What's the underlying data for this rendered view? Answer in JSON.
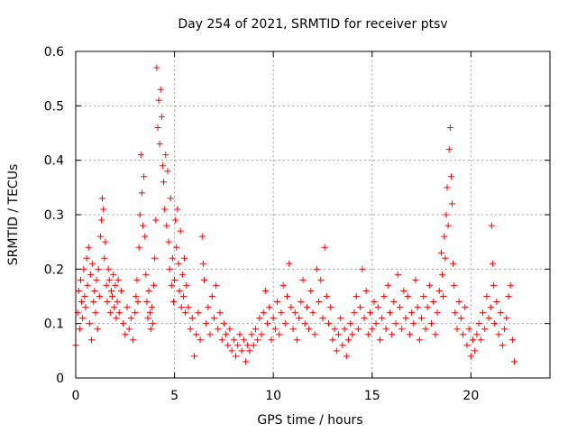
{
  "chart_data": {
    "type": "scatter",
    "title": "Day 254 of 2021, SRMTID for receiver ptsv",
    "xlabel": "GPS time / hours",
    "ylabel": "SRMTID / TECUs",
    "xlim": [
      0,
      24
    ],
    "ylim": [
      0,
      0.6
    ],
    "xticks": [
      0,
      5,
      10,
      15,
      20
    ],
    "xtick_labels": [
      "0",
      "5",
      "10",
      "15",
      "20"
    ],
    "yticks": [
      0,
      0.1,
      0.2,
      0.3,
      0.4,
      0.5,
      0.6
    ],
    "ytick_labels": [
      "0",
      "0.1",
      "0.2",
      "0.3",
      "0.4",
      "0.5",
      "0.6"
    ],
    "grid": true,
    "legend": "none",
    "marker": "plus",
    "color": "#ff0000",
    "series": [
      {
        "name": "SRMTID",
        "points": [
          [
            0.0,
            0.06
          ],
          [
            0.1,
            0.12
          ],
          [
            0.15,
            0.16
          ],
          [
            0.2,
            0.09
          ],
          [
            0.25,
            0.18
          ],
          [
            0.3,
            0.14
          ],
          [
            0.35,
            0.11
          ],
          [
            0.4,
            0.2
          ],
          [
            0.45,
            0.15
          ],
          [
            0.5,
            0.13
          ],
          [
            0.55,
            0.22
          ],
          [
            0.6,
            0.17
          ],
          [
            0.65,
            0.24
          ],
          [
            0.7,
            0.1
          ],
          [
            0.75,
            0.19
          ],
          [
            0.8,
            0.07
          ],
          [
            0.85,
            0.21
          ],
          [
            0.9,
            0.14
          ],
          [
            0.95,
            0.16
          ],
          [
            1.0,
            0.12
          ],
          [
            1.05,
            0.18
          ],
          [
            1.1,
            0.09
          ],
          [
            1.15,
            0.2
          ],
          [
            1.2,
            0.15
          ],
          [
            1.25,
            0.26
          ],
          [
            1.3,
            0.29
          ],
          [
            1.35,
            0.33
          ],
          [
            1.4,
            0.31
          ],
          [
            1.45,
            0.22
          ],
          [
            1.5,
            0.25
          ],
          [
            1.55,
            0.17
          ],
          [
            1.6,
            0.14
          ],
          [
            1.65,
            0.2
          ],
          [
            1.7,
            0.18
          ],
          [
            1.75,
            0.12
          ],
          [
            1.8,
            0.16
          ],
          [
            1.85,
            0.15
          ],
          [
            1.9,
            0.19
          ],
          [
            1.95,
            0.13
          ],
          [
            2.0,
            0.17
          ],
          [
            2.05,
            0.11
          ],
          [
            2.1,
            0.14
          ],
          [
            2.15,
            0.18
          ],
          [
            2.2,
            0.12
          ],
          [
            2.3,
            0.16
          ],
          [
            2.4,
            0.1
          ],
          [
            2.5,
            0.08
          ],
          [
            2.6,
            0.13
          ],
          [
            2.7,
            0.09
          ],
          [
            2.8,
            0.11
          ],
          [
            2.9,
            0.07
          ],
          [
            3.0,
            0.12
          ],
          [
            3.05,
            0.15
          ],
          [
            3.1,
            0.18
          ],
          [
            3.15,
            0.14
          ],
          [
            3.2,
            0.24
          ],
          [
            3.25,
            0.3
          ],
          [
            3.3,
            0.41
          ],
          [
            3.35,
            0.34
          ],
          [
            3.4,
            0.28
          ],
          [
            3.45,
            0.37
          ],
          [
            3.5,
            0.26
          ],
          [
            3.55,
            0.19
          ],
          [
            3.6,
            0.14
          ],
          [
            3.65,
            0.11
          ],
          [
            3.7,
            0.16
          ],
          [
            3.75,
            0.12
          ],
          [
            3.8,
            0.09
          ],
          [
            3.85,
            0.13
          ],
          [
            3.9,
            0.1
          ],
          [
            3.95,
            0.17
          ],
          [
            4.0,
            0.22
          ],
          [
            4.05,
            0.29
          ],
          [
            4.1,
            0.57
          ],
          [
            4.15,
            0.46
          ],
          [
            4.2,
            0.51
          ],
          [
            4.25,
            0.43
          ],
          [
            4.3,
            0.53
          ],
          [
            4.35,
            0.48
          ],
          [
            4.4,
            0.39
          ],
          [
            4.45,
            0.36
          ],
          [
            4.5,
            0.31
          ],
          [
            4.55,
            0.41
          ],
          [
            4.6,
            0.28
          ],
          [
            4.65,
            0.38
          ],
          [
            4.7,
            0.25
          ],
          [
            4.75,
            0.2
          ],
          [
            4.8,
            0.33
          ],
          [
            4.85,
            0.17
          ],
          [
            4.9,
            0.22
          ],
          [
            4.95,
            0.14
          ],
          [
            5.0,
            0.18
          ],
          [
            5.05,
            0.29
          ],
          [
            5.1,
            0.24
          ],
          [
            5.15,
            0.31
          ],
          [
            5.2,
            0.21
          ],
          [
            5.25,
            0.16
          ],
          [
            5.3,
            0.27
          ],
          [
            5.35,
            0.13
          ],
          [
            5.4,
            0.19
          ],
          [
            5.45,
            0.15
          ],
          [
            5.5,
            0.22
          ],
          [
            5.55,
            0.12
          ],
          [
            5.6,
            0.17
          ],
          [
            5.7,
            0.13
          ],
          [
            5.8,
            0.09
          ],
          [
            5.9,
            0.11
          ],
          [
            6.0,
            0.04
          ],
          [
            6.1,
            0.08
          ],
          [
            6.2,
            0.12
          ],
          [
            6.3,
            0.07
          ],
          [
            6.4,
            0.26
          ],
          [
            6.45,
            0.21
          ],
          [
            6.5,
            0.18
          ],
          [
            6.6,
            0.1
          ],
          [
            6.7,
            0.13
          ],
          [
            6.8,
            0.08
          ],
          [
            6.9,
            0.15
          ],
          [
            7.0,
            0.11
          ],
          [
            7.1,
            0.17
          ],
          [
            7.2,
            0.09
          ],
          [
            7.3,
            0.12
          ],
          [
            7.4,
            0.07
          ],
          [
            7.5,
            0.1
          ],
          [
            7.6,
            0.08
          ],
          [
            7.7,
            0.06
          ],
          [
            7.8,
            0.09
          ],
          [
            7.9,
            0.05
          ],
          [
            8.0,
            0.07
          ],
          [
            8.1,
            0.04
          ],
          [
            8.2,
            0.06
          ],
          [
            8.3,
            0.08
          ],
          [
            8.4,
            0.05
          ],
          [
            8.5,
            0.07
          ],
          [
            8.6,
            0.03
          ],
          [
            8.7,
            0.06
          ],
          [
            8.8,
            0.05
          ],
          [
            8.9,
            0.08
          ],
          [
            9.0,
            0.06
          ],
          [
            9.1,
            0.09
          ],
          [
            9.2,
            0.07
          ],
          [
            9.3,
            0.11
          ],
          [
            9.4,
            0.08
          ],
          [
            9.5,
            0.12
          ],
          [
            9.6,
            0.16
          ],
          [
            9.7,
            0.1
          ],
          [
            9.8,
            0.13
          ],
          [
            9.9,
            0.07
          ],
          [
            10.0,
            0.11
          ],
          [
            10.1,
            0.09
          ],
          [
            10.2,
            0.14
          ],
          [
            10.3,
            0.08
          ],
          [
            10.4,
            0.12
          ],
          [
            10.5,
            0.17
          ],
          [
            10.6,
            0.1
          ],
          [
            10.7,
            0.15
          ],
          [
            10.8,
            0.21
          ],
          [
            10.9,
            0.13
          ],
          [
            11.0,
            0.09
          ],
          [
            11.1,
            0.12
          ],
          [
            11.2,
            0.07
          ],
          [
            11.3,
            0.11
          ],
          [
            11.4,
            0.14
          ],
          [
            11.5,
            0.18
          ],
          [
            11.6,
            0.1
          ],
          [
            11.7,
            0.13
          ],
          [
            11.8,
            0.09
          ],
          [
            11.9,
            0.16
          ],
          [
            12.0,
            0.12
          ],
          [
            12.1,
            0.08
          ],
          [
            12.2,
            0.2
          ],
          [
            12.3,
            0.14
          ],
          [
            12.4,
            0.18
          ],
          [
            12.5,
            0.11
          ],
          [
            12.6,
            0.24
          ],
          [
            12.7,
            0.15
          ],
          [
            12.8,
            0.1
          ],
          [
            12.9,
            0.13
          ],
          [
            13.0,
            0.07
          ],
          [
            13.1,
            0.09
          ],
          [
            13.2,
            0.05
          ],
          [
            13.3,
            0.08
          ],
          [
            13.4,
            0.11
          ],
          [
            13.5,
            0.06
          ],
          [
            13.6,
            0.09
          ],
          [
            13.7,
            0.04
          ],
          [
            13.8,
            0.07
          ],
          [
            13.9,
            0.1
          ],
          [
            14.0,
            0.08
          ],
          [
            14.1,
            0.12
          ],
          [
            14.2,
            0.15
          ],
          [
            14.3,
            0.09
          ],
          [
            14.4,
            0.13
          ],
          [
            14.5,
            0.2
          ],
          [
            14.6,
            0.11
          ],
          [
            14.7,
            0.16
          ],
          [
            14.8,
            0.08
          ],
          [
            14.9,
            0.12
          ],
          [
            15.0,
            0.09
          ],
          [
            15.1,
            0.14
          ],
          [
            15.2,
            0.1
          ],
          [
            15.3,
            0.13
          ],
          [
            15.4,
            0.07
          ],
          [
            15.5,
            0.11
          ],
          [
            15.6,
            0.15
          ],
          [
            15.7,
            0.09
          ],
          [
            15.8,
            0.17
          ],
          [
            15.9,
            0.12
          ],
          [
            16.0,
            0.08
          ],
          [
            16.1,
            0.14
          ],
          [
            16.2,
            0.1
          ],
          [
            16.3,
            0.19
          ],
          [
            16.4,
            0.13
          ],
          [
            16.5,
            0.09
          ],
          [
            16.6,
            0.16
          ],
          [
            16.7,
            0.11
          ],
          [
            16.8,
            0.15
          ],
          [
            16.9,
            0.08
          ],
          [
            17.0,
            0.12
          ],
          [
            17.1,
            0.1
          ],
          [
            17.2,
            0.18
          ],
          [
            17.3,
            0.13
          ],
          [
            17.4,
            0.07
          ],
          [
            17.5,
            0.11
          ],
          [
            17.6,
            0.15
          ],
          [
            17.7,
            0.09
          ],
          [
            17.8,
            0.13
          ],
          [
            17.9,
            0.17
          ],
          [
            18.0,
            0.1
          ],
          [
            18.1,
            0.14
          ],
          [
            18.2,
            0.08
          ],
          [
            18.3,
            0.12
          ],
          [
            18.4,
            0.16
          ],
          [
            18.5,
            0.23
          ],
          [
            18.55,
            0.19
          ],
          [
            18.6,
            0.15
          ],
          [
            18.65,
            0.26
          ],
          [
            18.7,
            0.22
          ],
          [
            18.75,
            0.3
          ],
          [
            18.8,
            0.35
          ],
          [
            18.85,
            0.28
          ],
          [
            18.9,
            0.42
          ],
          [
            18.95,
            0.46
          ],
          [
            19.0,
            0.37
          ],
          [
            19.05,
            0.32
          ],
          [
            19.1,
            0.21
          ],
          [
            19.15,
            0.17
          ],
          [
            19.2,
            0.12
          ],
          [
            19.3,
            0.09
          ],
          [
            19.4,
            0.14
          ],
          [
            19.5,
            0.11
          ],
          [
            19.6,
            0.08
          ],
          [
            19.7,
            0.13
          ],
          [
            19.8,
            0.06
          ],
          [
            19.9,
            0.09
          ],
          [
            20.0,
            0.04
          ],
          [
            20.1,
            0.07
          ],
          [
            20.2,
            0.05
          ],
          [
            20.3,
            0.08
          ],
          [
            20.4,
            0.1
          ],
          [
            20.5,
            0.07
          ],
          [
            20.6,
            0.12
          ],
          [
            20.7,
            0.09
          ],
          [
            20.8,
            0.15
          ],
          [
            20.9,
            0.11
          ],
          [
            21.0,
            0.13
          ],
          [
            21.05,
            0.28
          ],
          [
            21.1,
            0.21
          ],
          [
            21.15,
            0.17
          ],
          [
            21.2,
            0.1
          ],
          [
            21.3,
            0.14
          ],
          [
            21.4,
            0.08
          ],
          [
            21.5,
            0.12
          ],
          [
            21.6,
            0.06
          ],
          [
            21.7,
            0.09
          ],
          [
            21.8,
            0.11
          ],
          [
            21.9,
            0.15
          ],
          [
            22.0,
            0.17
          ],
          [
            22.1,
            0.07
          ],
          [
            22.2,
            0.03
          ]
        ]
      }
    ]
  }
}
